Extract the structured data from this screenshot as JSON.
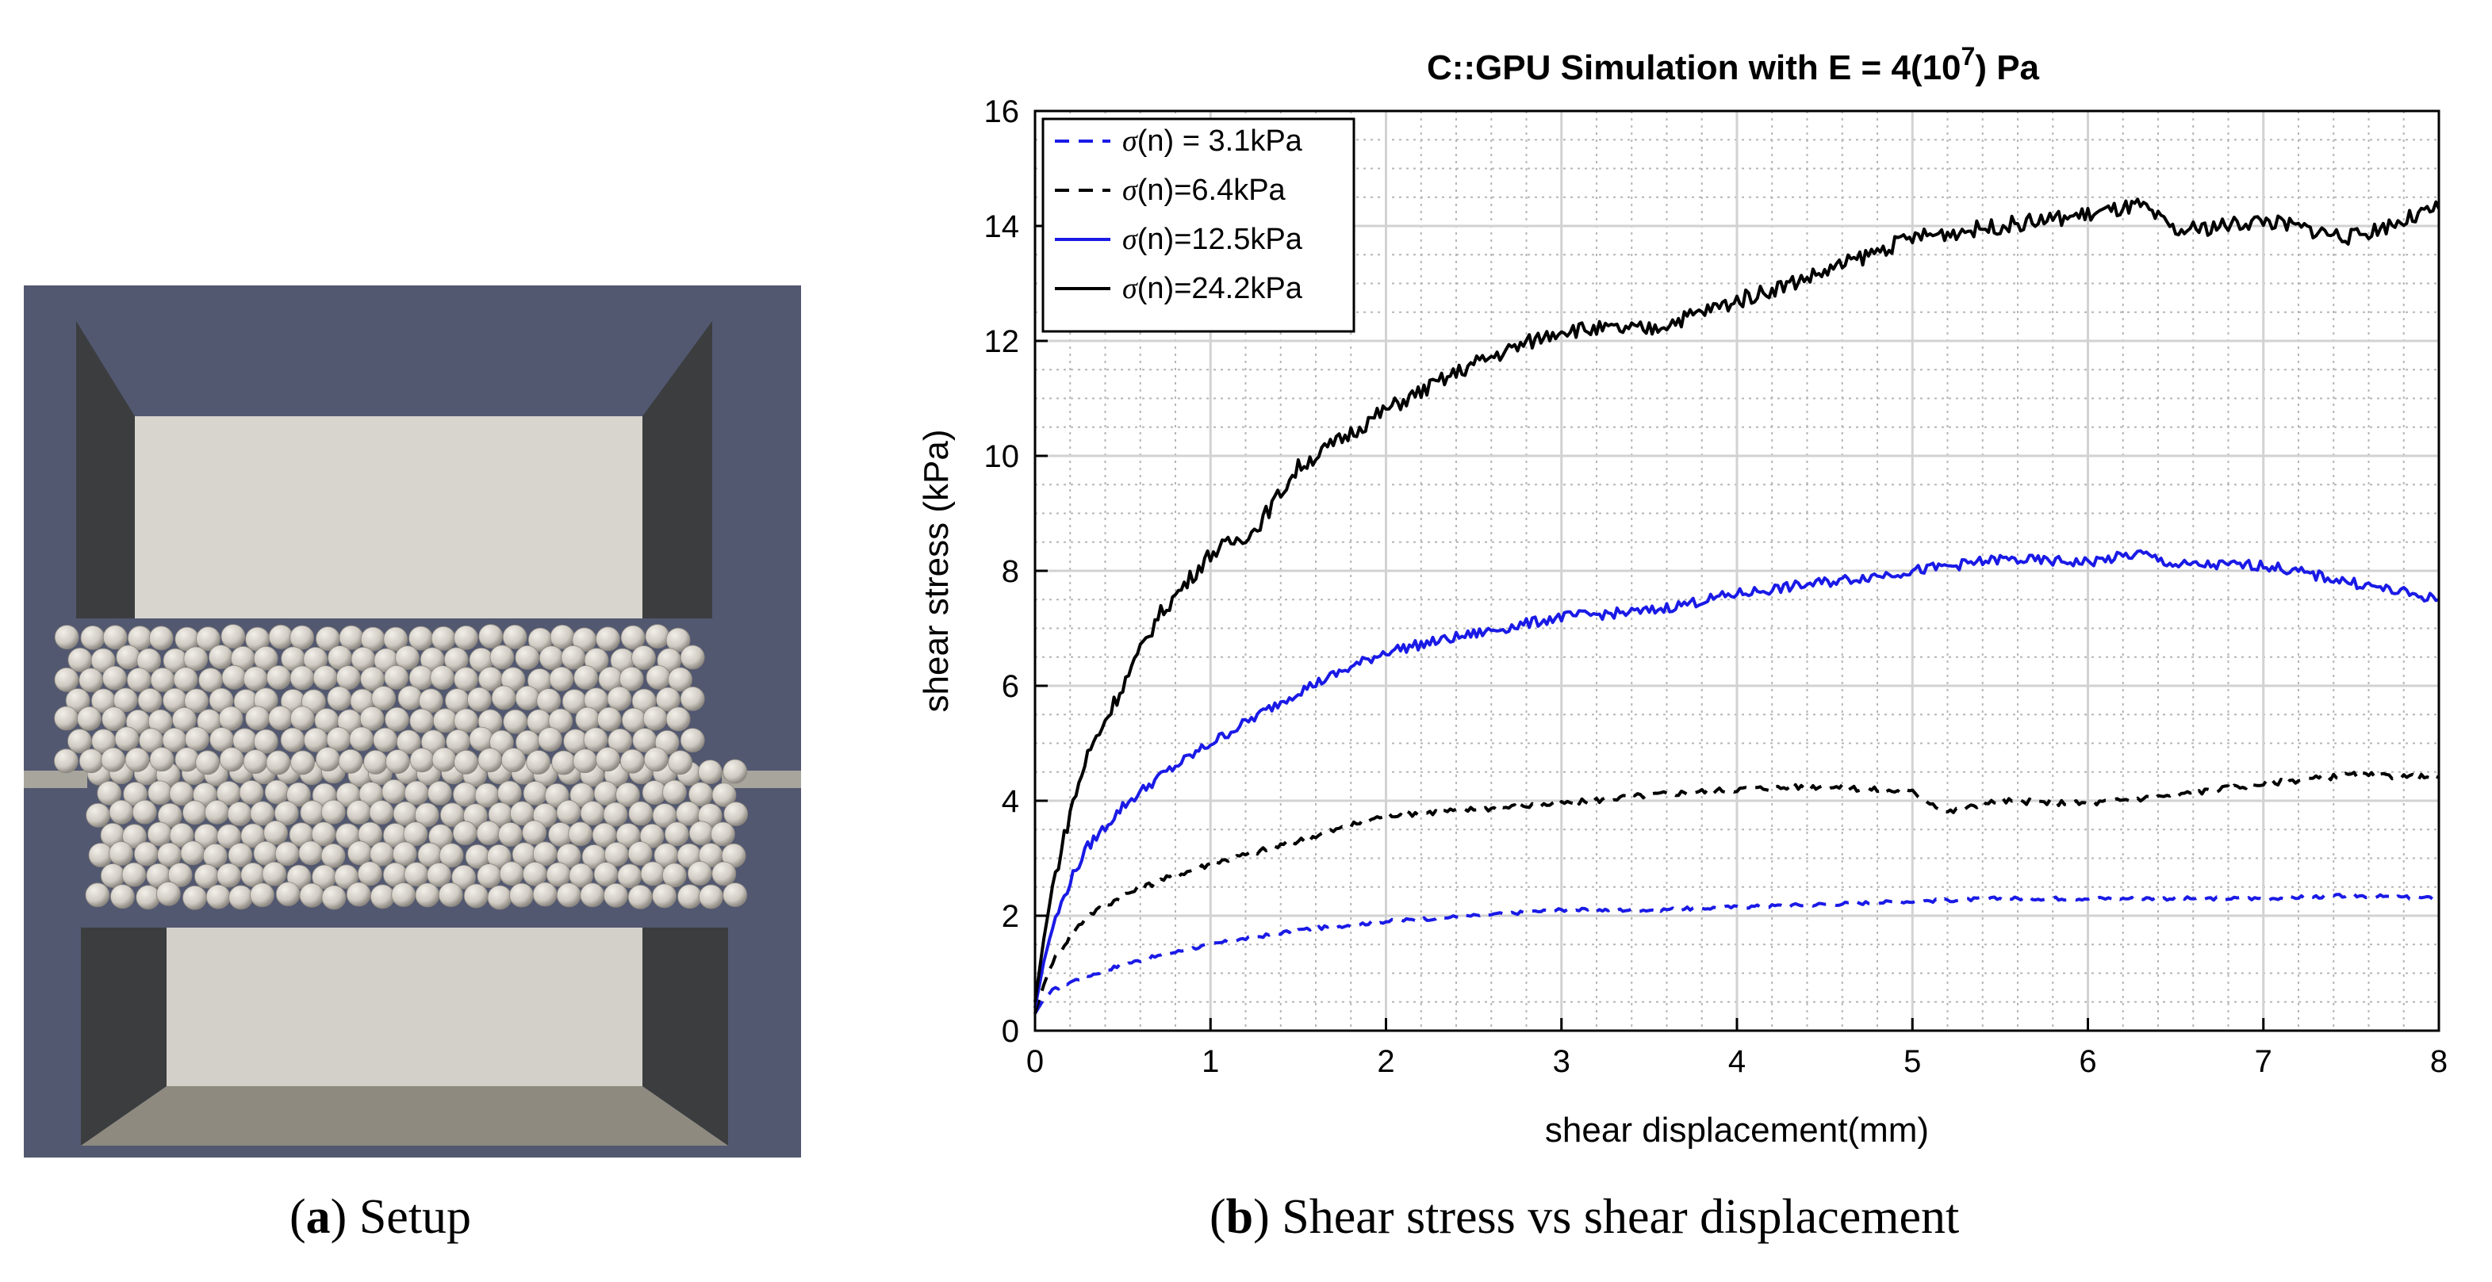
{
  "captions": {
    "a": {
      "paren_open": "(",
      "letter": "a",
      "paren_close": ")",
      "text": " Setup"
    },
    "b": {
      "paren_open": "(",
      "letter": "b",
      "paren_close": ")",
      "text": " Shear stress vs shear displacement"
    }
  },
  "colors": {
    "setup_background": "#525870",
    "wall_dark": "#3b3d3f",
    "top_plate": "#d8d5cf",
    "bottom_plate": "#d3d0ca",
    "bottom_floor": "#8e8a80",
    "ledge": "#a8a59d",
    "sphere": "#d8d3cb",
    "blue": "#1a1ae6",
    "black": "#000000"
  },
  "chart_data": {
    "type": "line",
    "title": "C::GPU Simulation with E = 4(10",
    "title_sup": "7",
    "title_end": ") Pa",
    "xlabel": "shear displacement(mm)",
    "ylabel": "shear stress (kPa)",
    "xlim": [
      0,
      8
    ],
    "ylim": [
      0,
      16
    ],
    "xticks": [
      "0",
      "1",
      "2",
      "3",
      "4",
      "5",
      "6",
      "7",
      "8"
    ],
    "yticks": [
      "0",
      "2",
      "4",
      "6",
      "8",
      "10",
      "12",
      "14",
      "16"
    ],
    "grid": "major and minor",
    "legend_position": "top-left",
    "series": [
      {
        "name": "σ(n) = 3.1kPa",
        "sigma_symbol": "σ",
        "name_rest": "(n) = 3.1kPa",
        "color": "blue",
        "style": "dashed",
        "x": [
          0,
          0.05,
          0.1,
          0.2,
          0.3,
          0.5,
          0.7,
          1.0,
          1.5,
          2.0,
          2.5,
          3.0,
          3.5,
          4.0,
          4.5,
          5.0,
          5.5,
          6.0,
          6.5,
          7.0,
          7.5,
          8.0
        ],
        "y": [
          0.3,
          0.55,
          0.7,
          0.85,
          0.95,
          1.15,
          1.3,
          1.5,
          1.75,
          1.9,
          2.0,
          2.1,
          2.1,
          2.15,
          2.2,
          2.25,
          2.3,
          2.3,
          2.3,
          2.3,
          2.35,
          2.3
        ]
      },
      {
        "name": "σ(n)=6.4kPa",
        "sigma_symbol": "σ",
        "name_rest": "(n)=6.4kPa",
        "color": "black",
        "style": "dashed",
        "x": [
          0,
          0.05,
          0.1,
          0.2,
          0.3,
          0.5,
          0.7,
          1.0,
          1.5,
          2.0,
          2.5,
          3.0,
          3.5,
          4.0,
          4.5,
          5.0,
          5.2,
          5.5,
          6.0,
          6.5,
          7.0,
          7.5,
          8.0
        ],
        "y": [
          0.3,
          0.8,
          1.2,
          1.65,
          2.0,
          2.35,
          2.6,
          2.9,
          3.3,
          3.75,
          3.85,
          3.95,
          4.1,
          4.2,
          4.25,
          4.15,
          3.8,
          4.0,
          3.95,
          4.1,
          4.3,
          4.45,
          4.4
        ]
      },
      {
        "name": "σ(n)=12.5kPa",
        "sigma_symbol": "σ",
        "name_rest": "(n)=12.5kPa",
        "color": "blue",
        "style": "solid",
        "x": [
          0,
          0.05,
          0.1,
          0.2,
          0.3,
          0.5,
          0.7,
          1.0,
          1.5,
          2.0,
          2.5,
          3.0,
          3.5,
          4.0,
          4.5,
          5.0,
          5.5,
          6.0,
          6.3,
          6.5,
          7.0,
          7.5,
          8.0
        ],
        "y": [
          0.4,
          1.2,
          1.8,
          2.6,
          3.2,
          3.9,
          4.4,
          5.0,
          5.9,
          6.6,
          6.9,
          7.2,
          7.3,
          7.6,
          7.8,
          8.0,
          8.2,
          8.15,
          8.3,
          8.1,
          8.1,
          7.8,
          7.5
        ]
      },
      {
        "name": "σ(n)=24.2kPa",
        "sigma_symbol": "σ",
        "name_rest": "(n)=24.2kPa",
        "color": "black",
        "style": "solid",
        "x": [
          0,
          0.05,
          0.1,
          0.2,
          0.3,
          0.5,
          0.7,
          1.0,
          1.25,
          1.5,
          2.0,
          2.5,
          3.0,
          3.5,
          4.0,
          4.5,
          5.0,
          5.5,
          6.0,
          6.3,
          6.5,
          7.0,
          7.5,
          8.0
        ],
        "y": [
          0.5,
          1.6,
          2.5,
          3.8,
          4.8,
          6.0,
          7.2,
          8.3,
          8.7,
          9.8,
          10.8,
          11.6,
          12.2,
          12.2,
          12.7,
          13.2,
          13.8,
          14.0,
          14.2,
          14.35,
          13.9,
          14.1,
          13.8,
          14.3
        ]
      }
    ]
  }
}
